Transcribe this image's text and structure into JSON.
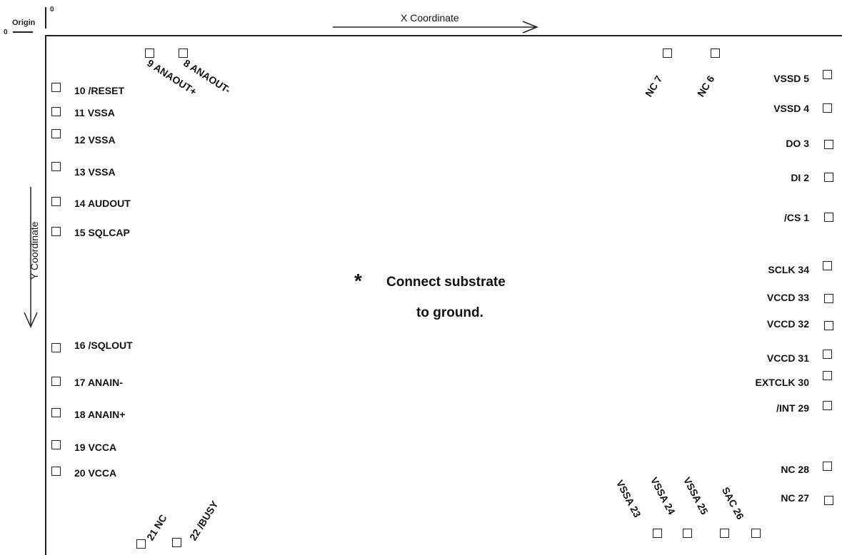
{
  "header": {
    "origin_label": "Origin",
    "origin_x_zero": "0",
    "origin_y_zero": "0",
    "x_axis_label": "X Coordinate",
    "y_axis_label": "Y Coordinate"
  },
  "pins": {
    "p1": "/CS 1",
    "p2": "DI 2",
    "p3": "DO 3",
    "p4": "VSSD 4",
    "p5": "VSSD 5",
    "p6": "NC 6",
    "p7": "NC 7",
    "p8": "8 ANAOUT-",
    "p9": "9 ANAOUT+",
    "p10": "10 /RESET",
    "p11": "11 VSSA",
    "p12": "12 VSSA",
    "p13": "13 VSSA",
    "p14": "14 AUDOUT",
    "p15": "15 SQLCAP",
    "p16": "16 /SQLOUT",
    "p17": "17 ANAIN-",
    "p18": "18 ANAIN+",
    "p19": "19 VCCA",
    "p20": "20 VCCA",
    "p21": "21 NC",
    "p22": "22 /BUSY",
    "p23": "VSSA 23",
    "p24": "VSSA 24",
    "p25": "VSSA 25",
    "p26": "SAC 26",
    "p27": "NC 27",
    "p28": "NC 28",
    "p29": "/INT 29",
    "p30": "EXTCLK 30",
    "p31": "VCCD 31",
    "p32": "VCCD 32",
    "p33": "VCCD 33",
    "p34": "SCLK 34"
  },
  "note": {
    "asterisk": "*",
    "line1": "Connect substrate",
    "line2": "to ground."
  }
}
